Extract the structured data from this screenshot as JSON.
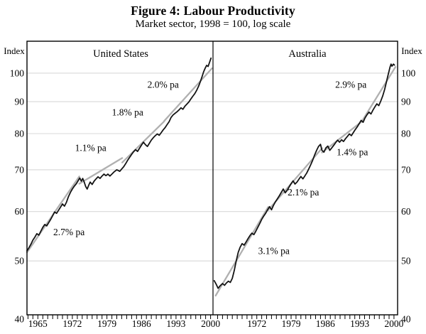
{
  "figure": {
    "title": "Figure 4: Labour Productivity",
    "subtitle": "Market sector, 1998 = 100, log scale"
  },
  "colors": {
    "series": "#141414",
    "trend": "#b0b0b0",
    "grid": "#d8d8d8",
    "axis": "#000000",
    "text": "#000000"
  },
  "chart_data": {
    "type": "line",
    "title": "Figure 4: Labour Productivity",
    "subtitle": "Market sector, 1998 = 100, log scale",
    "ylabel": "Index",
    "y_scale": "log",
    "y_range": [
      41,
      112.5
    ],
    "y_gridline_values": [
      50,
      60,
      70,
      80,
      90,
      100
    ],
    "y_tick_labels": [
      100,
      90,
      80,
      70,
      60,
      50,
      40
    ],
    "grid": true,
    "legend_position": "none",
    "minor_tick_interval_years": 1,
    "panels": [
      {
        "id": "us",
        "title": "United States",
        "x_tick_label_years": [
          1965,
          1972,
          1979,
          1986,
          1993,
          2000
        ],
        "minor_tick_years": [
          1963,
          2000
        ],
        "annotations": [
          {
            "text": "2.7% pa",
            "year": 1971.3,
            "value": 55.6
          },
          {
            "text": "1.1% pa",
            "year": 1975.7,
            "value": 75.9
          },
          {
            "text": "1.8% pa",
            "year": 1983.2,
            "value": 86.5
          },
          {
            "text": "2.0% pa",
            "year": 1990.4,
            "value": 95.9
          }
        ],
        "trend_segments": [
          {
            "label": "2.7% pa",
            "points": [
              [
                1962.8,
                51.6
              ],
              [
                1973.4,
                68.3
              ]
            ]
          },
          {
            "label": "1.1% pa",
            "points": [
              [
                1973.4,
                66.5
              ],
              [
                1982.1,
                73.1
              ]
            ]
          },
          {
            "label": "1.8% pa",
            "points": [
              [
                1982.1,
                71.9
              ],
              [
                1990.6,
                83.7
              ]
            ]
          },
          {
            "label": "2.0% pa",
            "points": [
              [
                1990.6,
                83.8
              ],
              [
                2000.3,
                101.8
              ]
            ]
          }
        ],
        "series": [
          [
            1962.8,
            51.9
          ],
          [
            1963.2,
            52.5
          ],
          [
            1963.6,
            53.2
          ],
          [
            1964.0,
            54.0
          ],
          [
            1964.4,
            54.6
          ],
          [
            1964.8,
            55.3
          ],
          [
            1965.2,
            55.0
          ],
          [
            1965.6,
            55.8
          ],
          [
            1966.0,
            56.6
          ],
          [
            1966.4,
            57.2
          ],
          [
            1966.8,
            56.9
          ],
          [
            1967.2,
            57.6
          ],
          [
            1967.6,
            58.3
          ],
          [
            1968.0,
            59.1
          ],
          [
            1968.4,
            59.9
          ],
          [
            1968.8,
            59.6
          ],
          [
            1969.2,
            60.3
          ],
          [
            1969.6,
            61.0
          ],
          [
            1970.0,
            61.7
          ],
          [
            1970.4,
            61.2
          ],
          [
            1970.8,
            62.1
          ],
          [
            1971.2,
            63.4
          ],
          [
            1971.6,
            64.4
          ],
          [
            1972.0,
            65.2
          ],
          [
            1972.4,
            65.9
          ],
          [
            1972.8,
            66.5
          ],
          [
            1973.2,
            67.3
          ],
          [
            1973.5,
            67.9
          ],
          [
            1973.8,
            67.1
          ],
          [
            1974.1,
            67.8
          ],
          [
            1974.4,
            66.9
          ],
          [
            1974.7,
            65.8
          ],
          [
            1975.0,
            65.2
          ],
          [
            1975.3,
            66.1
          ],
          [
            1975.6,
            66.9
          ],
          [
            1976.0,
            66.3
          ],
          [
            1976.4,
            67.1
          ],
          [
            1976.8,
            67.7
          ],
          [
            1977.2,
            68.2
          ],
          [
            1977.6,
            67.8
          ],
          [
            1978.0,
            68.4
          ],
          [
            1978.4,
            68.9
          ],
          [
            1978.8,
            68.5
          ],
          [
            1979.2,
            68.9
          ],
          [
            1979.6,
            68.4
          ],
          [
            1980.0,
            68.9
          ],
          [
            1980.4,
            69.4
          ],
          [
            1981.0,
            70.0
          ],
          [
            1981.6,
            69.6
          ],
          [
            1982.0,
            70.2
          ],
          [
            1982.4,
            70.8
          ],
          [
            1982.8,
            71.6
          ],
          [
            1983.2,
            72.5
          ],
          [
            1983.6,
            73.3
          ],
          [
            1984.0,
            74.1
          ],
          [
            1984.4,
            74.8
          ],
          [
            1984.8,
            75.4
          ],
          [
            1985.2,
            74.9
          ],
          [
            1985.6,
            75.8
          ],
          [
            1986.0,
            76.7
          ],
          [
            1986.4,
            77.5
          ],
          [
            1986.8,
            76.8
          ],
          [
            1987.2,
            76.3
          ],
          [
            1987.6,
            77.2
          ],
          [
            1988.0,
            78.1
          ],
          [
            1988.4,
            78.8
          ],
          [
            1988.8,
            79.4
          ],
          [
            1989.2,
            79.9
          ],
          [
            1989.6,
            79.5
          ],
          [
            1990.0,
            80.3
          ],
          [
            1990.4,
            81.1
          ],
          [
            1990.8,
            81.8
          ],
          [
            1991.2,
            82.7
          ],
          [
            1991.6,
            83.6
          ],
          [
            1992.0,
            84.9
          ],
          [
            1992.4,
            85.7
          ],
          [
            1992.8,
            86.2
          ],
          [
            1993.2,
            86.7
          ],
          [
            1993.6,
            87.3
          ],
          [
            1994.0,
            88.0
          ],
          [
            1994.4,
            87.5
          ],
          [
            1994.8,
            88.5
          ],
          [
            1995.2,
            89.2
          ],
          [
            1995.6,
            89.9
          ],
          [
            1996.0,
            90.9
          ],
          [
            1996.4,
            91.8
          ],
          [
            1996.8,
            92.7
          ],
          [
            1997.2,
            93.9
          ],
          [
            1997.6,
            95.4
          ],
          [
            1998.0,
            97.2
          ],
          [
            1998.3,
            98.8
          ],
          [
            1998.6,
            100.5
          ],
          [
            1998.9,
            101.8
          ],
          [
            1999.2,
            102.9
          ],
          [
            1999.5,
            102.5
          ],
          [
            1999.8,
            104.1
          ],
          [
            2000.1,
            105.7
          ]
        ]
      },
      {
        "id": "au",
        "title": "Australia",
        "x_tick_label_years": [
          1972,
          1979,
          1986,
          1993,
          2000
        ],
        "minor_tick_years": [
          1964,
          2000
        ],
        "annotations": [
          {
            "text": "3.1% pa",
            "year": 1975.5,
            "value": 51.9
          },
          {
            "text": "2.1% pa",
            "year": 1981.5,
            "value": 64.4
          },
          {
            "text": "1.4% pa",
            "year": 1991.5,
            "value": 74.7
          },
          {
            "text": "2.9% pa",
            "year": 1991.2,
            "value": 95.9
          }
        ],
        "trend_segments": [
          {
            "label": "3.1% pa",
            "points": [
              [
                1963.6,
                44.0
              ],
              [
                1974.3,
                61.0
              ]
            ]
          },
          {
            "label": "2.1% pa",
            "points": [
              [
                1974.3,
                60.3
              ],
              [
                1985.3,
                75.8
              ]
            ]
          },
          {
            "label": "1.4% pa",
            "points": [
              [
                1985.3,
                74.6
              ],
              [
                1993.4,
                83.6
              ]
            ]
          },
          {
            "label": "2.9% pa",
            "points": [
              [
                1993.4,
                83.6
              ],
              [
                2000.3,
                102.3
              ]
            ]
          }
        ],
        "series": [
          [
            1963.3,
            46.5
          ],
          [
            1963.7,
            45.9
          ],
          [
            1964.1,
            45.2
          ],
          [
            1964.5,
            45.6
          ],
          [
            1965.0,
            46.0
          ],
          [
            1965.4,
            45.7
          ],
          [
            1965.8,
            46.1
          ],
          [
            1966.2,
            46.4
          ],
          [
            1966.6,
            46.2
          ],
          [
            1967.0,
            46.9
          ],
          [
            1967.4,
            48.3
          ],
          [
            1967.8,
            50.0
          ],
          [
            1968.2,
            51.6
          ],
          [
            1968.6,
            52.6
          ],
          [
            1969.0,
            53.3
          ],
          [
            1969.4,
            53.0
          ],
          [
            1969.8,
            53.6
          ],
          [
            1970.2,
            54.3
          ],
          [
            1970.6,
            54.9
          ],
          [
            1971.0,
            55.4
          ],
          [
            1971.4,
            55.1
          ],
          [
            1971.8,
            55.8
          ],
          [
            1972.2,
            56.6
          ],
          [
            1972.6,
            57.4
          ],
          [
            1973.0,
            58.3
          ],
          [
            1973.4,
            59.0
          ],
          [
            1973.8,
            59.6
          ],
          [
            1974.2,
            60.4
          ],
          [
            1974.6,
            61.1
          ],
          [
            1975.0,
            60.4
          ],
          [
            1975.4,
            61.4
          ],
          [
            1975.8,
            62.2
          ],
          [
            1976.2,
            62.9
          ],
          [
            1976.6,
            63.6
          ],
          [
            1977.0,
            64.4
          ],
          [
            1977.4,
            65.2
          ],
          [
            1977.8,
            64.3
          ],
          [
            1978.2,
            64.9
          ],
          [
            1978.6,
            65.7
          ],
          [
            1979.0,
            66.5
          ],
          [
            1979.4,
            67.2
          ],
          [
            1979.8,
            66.4
          ],
          [
            1980.2,
            66.9
          ],
          [
            1980.6,
            67.6
          ],
          [
            1981.0,
            68.3
          ],
          [
            1981.4,
            67.7
          ],
          [
            1981.8,
            68.4
          ],
          [
            1982.2,
            69.2
          ],
          [
            1982.6,
            70.2
          ],
          [
            1983.0,
            71.3
          ],
          [
            1983.4,
            72.5
          ],
          [
            1983.8,
            73.9
          ],
          [
            1984.2,
            75.2
          ],
          [
            1984.6,
            76.3
          ],
          [
            1985.0,
            76.9
          ],
          [
            1985.3,
            75.2
          ],
          [
            1985.7,
            74.7
          ],
          [
            1986.1,
            75.9
          ],
          [
            1986.5,
            76.4
          ],
          [
            1986.9,
            75.2
          ],
          [
            1987.3,
            75.9
          ],
          [
            1987.7,
            76.6
          ],
          [
            1988.1,
            77.4
          ],
          [
            1988.5,
            78.1
          ],
          [
            1988.9,
            77.5
          ],
          [
            1989.3,
            78.2
          ],
          [
            1989.7,
            77.7
          ],
          [
            1990.1,
            78.5
          ],
          [
            1990.5,
            79.2
          ],
          [
            1990.9,
            79.9
          ],
          [
            1991.3,
            79.4
          ],
          [
            1991.7,
            80.3
          ],
          [
            1992.1,
            81.2
          ],
          [
            1992.5,
            82.0
          ],
          [
            1992.9,
            83.0
          ],
          [
            1993.3,
            84.0
          ],
          [
            1993.7,
            83.4
          ],
          [
            1994.1,
            84.8
          ],
          [
            1994.5,
            85.8
          ],
          [
            1994.9,
            86.6
          ],
          [
            1995.3,
            86.0
          ],
          [
            1995.7,
            87.2
          ],
          [
            1996.1,
            88.3
          ],
          [
            1996.5,
            89.3
          ],
          [
            1996.9,
            88.7
          ],
          [
            1997.3,
            90.2
          ],
          [
            1997.7,
            91.9
          ],
          [
            1998.1,
            94.2
          ],
          [
            1998.4,
            96.4
          ],
          [
            1998.7,
            98.6
          ],
          [
            1999.0,
            100.8
          ],
          [
            1999.2,
            102.3
          ],
          [
            1999.4,
            103.4
          ],
          [
            1999.6,
            102.6
          ],
          [
            1999.9,
            103.4
          ],
          [
            2000.1,
            103.0
          ]
        ]
      }
    ],
    "index_axis_label_left": "Index",
    "index_axis_label_right": "Index"
  }
}
